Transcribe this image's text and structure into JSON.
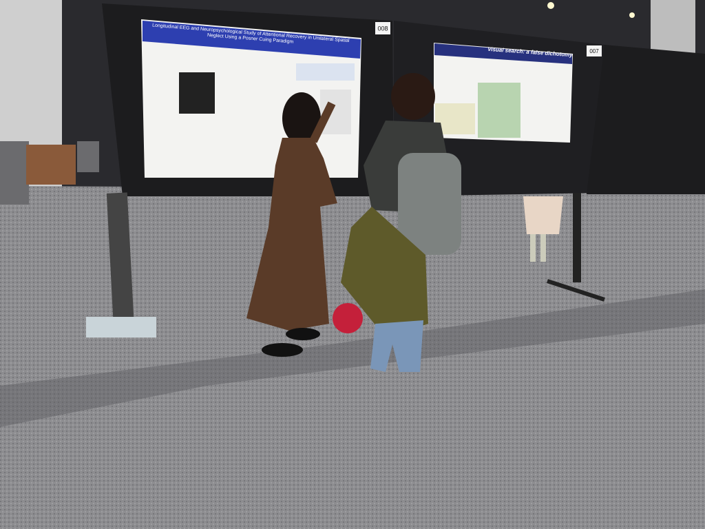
{
  "boards": [
    {
      "number": "008",
      "poster_title": "Longitudinal EEG and Neuropsychological Study of Attentional Recovery in Unilateral Spatial Neglect Using a Posner Cuing Paradigm"
    },
    {
      "number": "007",
      "poster_title": "Visual search: a false dichotomy"
    }
  ]
}
